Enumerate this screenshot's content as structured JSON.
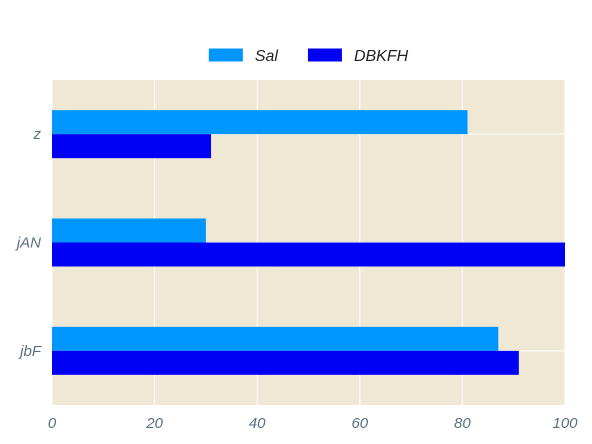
{
  "chart_data": {
    "type": "bar",
    "orientation": "horizontal",
    "categories": [
      "z",
      "jAN",
      "jbF"
    ],
    "series": [
      {
        "name": "Sal",
        "values": [
          81,
          30,
          87
        ],
        "color": "#0096ff"
      },
      {
        "name": "DBKFH",
        "values": [
          31,
          100,
          91
        ],
        "color": "#0000f5"
      }
    ],
    "xlim": [
      0,
      100
    ],
    "xticks": [
      0,
      20,
      40,
      60,
      80,
      100
    ],
    "title": "",
    "xlabel": "",
    "ylabel": "",
    "grid": true,
    "legend_position": "top-center",
    "plot_background": "#eee8d5",
    "grid_color": "#ffffff"
  }
}
